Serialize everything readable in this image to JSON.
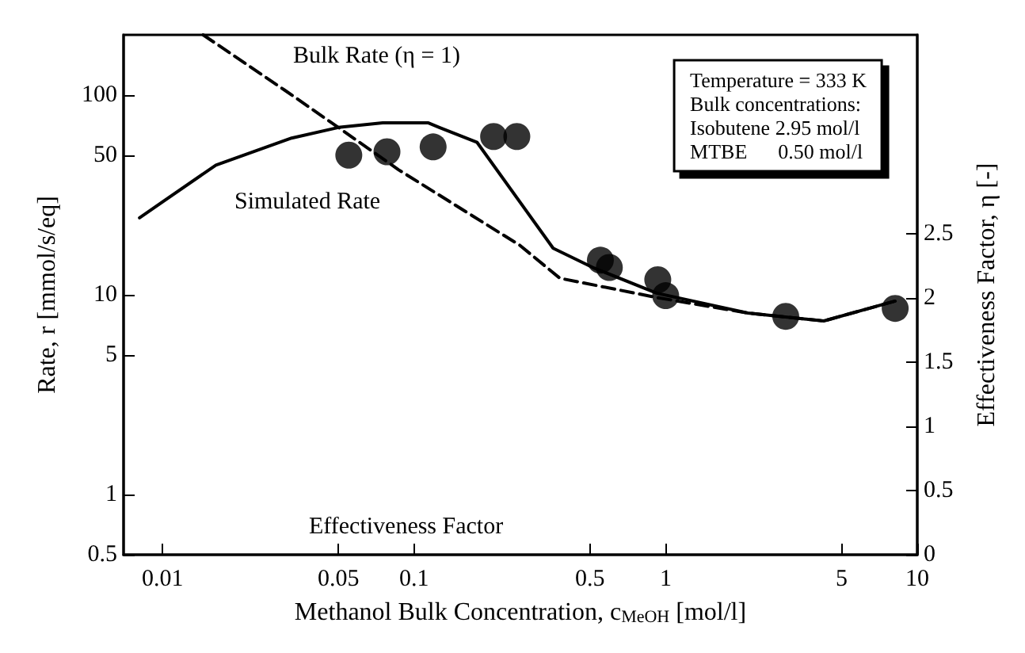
{
  "chart_data": {
    "type": "line",
    "xlabel": "Methanol Bulk Concentration, c$_{MeOH}$ [mol/l]",
    "ylabel": "Rate, r [mmol/s/eq]",
    "y2label": "Effectiveness Factor, η [-]",
    "log": "xy",
    "xlim": [
      0.007,
      10
    ],
    "xticks": [
      0.01,
      0.05,
      0.1,
      0.5,
      1,
      5,
      10
    ],
    "ylim": [
      0.5,
      200
    ],
    "yticks": [
      0.5,
      1,
      5,
      10,
      50,
      100
    ],
    "y2lim": [
      0,
      4.05
    ],
    "y2ticks": [
      0,
      0.5,
      1,
      1.5,
      2,
      2.5
    ],
    "grid": false,
    "series": [
      {
        "type": "scatter",
        "color": "#000000",
        "marker": "circle",
        "x": [
          0.055,
          0.078,
          0.119,
          0.207,
          0.256,
          0.55,
          0.597,
          0.93,
          1.0,
          3.0,
          8.17
        ],
        "values": [
          50,
          52,
          55,
          62,
          62,
          14.9,
          13.7,
          11.9,
          9.9,
          7.8,
          8.55
        ]
      },
      {
        "color": "#000000",
        "line_style": "solid",
        "marker": "none",
        "x": [
          0.0081,
          0.0163,
          0.0326,
          0.05,
          0.075,
          0.114,
          0.126,
          0.178,
          0.357,
          0.513,
          0.92,
          2.12,
          4.25,
          8.17
        ],
        "values": [
          24.3,
          44.6,
          60.9,
          68.8,
          72.5,
          72.5,
          68.8,
          57.9,
          17.1,
          13.7,
          10.2,
          8.1,
          7.4,
          9.3
        ]
      },
      {
        "color": "#000000",
        "line_style": "dashed",
        "marker": "none",
        "x": [
          0.0145,
          0.0305,
          0.05,
          0.0866,
          0.263,
          0.38,
          0.92,
          2.12,
          4.25,
          8.17
        ],
        "values": [
          200,
          106,
          68.8,
          42.3,
          17.7,
          12.1,
          9.7,
          8.1,
          7.4,
          9.3
        ]
      }
    ],
    "annotations": [
      "Bulk Rate (η = 1)",
      "Simulated Rate",
      "Effectiveness Factor",
      "Temperature = 333 K\nBulk concentrations:\nIsobutene 2.95 mol/l\nMTBE      0.50 mol/l"
    ]
  }
}
